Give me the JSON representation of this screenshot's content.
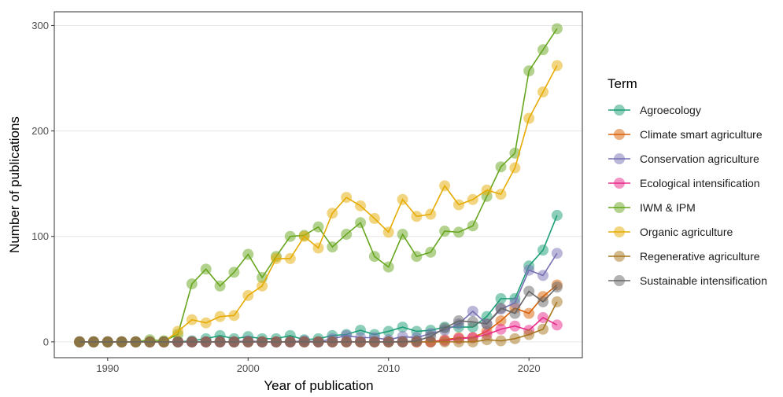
{
  "chart_data": {
    "type": "line",
    "title": "",
    "xlabel": "Year of publication",
    "ylabel": "Number of publications",
    "xlim": [
      1986.2,
      2023.8
    ],
    "ylim": [
      -15,
      313
    ],
    "x_ticks": [
      1990,
      2000,
      2010,
      2020
    ],
    "y_ticks": [
      0,
      100,
      200,
      300
    ],
    "grid": true,
    "legend_title": "Term",
    "legend_position": "right",
    "x": [
      1988,
      1989,
      1990,
      1991,
      1992,
      1993,
      1994,
      1995,
      1996,
      1997,
      1998,
      1999,
      2000,
      2001,
      2002,
      2003,
      2004,
      2005,
      2006,
      2007,
      2008,
      2009,
      2010,
      2011,
      2012,
      2013,
      2014,
      2015,
      2016,
      2017,
      2018,
      2019,
      2020,
      2021,
      2022
    ],
    "series": [
      {
        "name": "Agroecology",
        "color": "#1b9e77",
        "values": [
          0,
          0,
          0,
          0,
          0,
          0,
          0,
          0,
          1,
          3,
          6,
          3,
          5,
          3,
          3,
          6,
          2,
          3,
          6,
          7,
          11,
          7,
          10,
          14,
          10,
          11,
          14,
          14,
          14,
          24,
          41,
          41,
          72,
          87,
          120
        ]
      },
      {
        "name": "Climate smart agriculture",
        "color": "#d95f02",
        "values": [
          0,
          0,
          0,
          0,
          0,
          0,
          0,
          0,
          0,
          0,
          0,
          0,
          0,
          0,
          0,
          0,
          0,
          0,
          0,
          0,
          0,
          0,
          0,
          0,
          0,
          0,
          2,
          4,
          4,
          10,
          20,
          32,
          27,
          43,
          54
        ]
      },
      {
        "name": "Conservation agriculture",
        "color": "#7570b3",
        "values": [
          0,
          0,
          0,
          0,
          0,
          0,
          0,
          0,
          0,
          0,
          0,
          0,
          1,
          0,
          0,
          0,
          1,
          0,
          3,
          6,
          4,
          4,
          2,
          5,
          4,
          8,
          11,
          17,
          29,
          17,
          31,
          37,
          68,
          63,
          84
        ]
      },
      {
        "name": "Ecological intensification",
        "color": "#e7298a",
        "values": [
          0,
          0,
          0,
          0,
          0,
          0,
          0,
          0,
          0,
          0,
          0,
          0,
          0,
          0,
          0,
          0,
          0,
          0,
          0,
          0,
          0,
          0,
          0,
          0,
          0,
          0,
          1,
          3,
          4,
          7,
          12,
          15,
          11,
          23,
          16
        ]
      },
      {
        "name": "IWM & IPM",
        "color": "#66a61e",
        "values": [
          0,
          0,
          0,
          0,
          0,
          2,
          1,
          7,
          55,
          69,
          53,
          66,
          83,
          61,
          81,
          100,
          101,
          109,
          90,
          102,
          113,
          81,
          71,
          102,
          81,
          85,
          105,
          104,
          110,
          138,
          166,
          179,
          257,
          277,
          297
        ]
      },
      {
        "name": "Organic agriculture",
        "color": "#e6ab02",
        "values": [
          0,
          0,
          0,
          0,
          0,
          0,
          0,
          10,
          21,
          18,
          24,
          25,
          44,
          53,
          79,
          79,
          100,
          89,
          122,
          137,
          129,
          117,
          104,
          135,
          119,
          121,
          148,
          130,
          135,
          144,
          140,
          165,
          212,
          237,
          262
        ]
      },
      {
        "name": "Regenerative agriculture",
        "color": "#a6761d",
        "values": [
          0,
          0,
          0,
          0,
          0,
          0,
          0,
          0,
          0,
          0,
          0,
          0,
          0,
          0,
          0,
          0,
          0,
          0,
          0,
          0,
          0,
          0,
          0,
          0,
          0,
          0,
          0,
          0,
          0,
          2,
          1,
          3,
          7,
          12,
          38
        ]
      },
      {
        "name": "Sustainable intensification",
        "color": "#666666",
        "values": [
          0,
          0,
          0,
          0,
          0,
          0,
          0,
          0,
          0,
          0,
          0,
          0,
          0,
          0,
          0,
          0,
          0,
          0,
          0,
          0,
          0,
          0,
          0,
          0,
          1,
          5,
          13,
          20,
          19,
          17,
          32,
          27,
          48,
          38,
          52
        ]
      }
    ]
  }
}
